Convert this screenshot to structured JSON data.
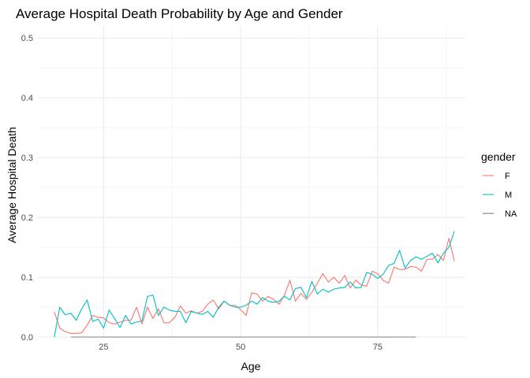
{
  "chart_data": {
    "type": "line",
    "title": "Average Hospital Death Probability by Age and Gender",
    "xlabel": "Age",
    "ylabel": "Average Hospital Death",
    "xlim": [
      13,
      91
    ],
    "ylim": [
      0,
      0.52
    ],
    "x_ticks": [
      25,
      50,
      75
    ],
    "x_tick_labels": [
      "25",
      "50",
      "75"
    ],
    "y_ticks": [
      0.0,
      0.1,
      0.2,
      0.3,
      0.4,
      0.5
    ],
    "y_tick_labels": [
      "0.0",
      "0.1",
      "0.2",
      "0.3",
      "0.4",
      "0.5"
    ],
    "grid": true,
    "legend": {
      "title": "gender",
      "position": "right"
    },
    "series": [
      {
        "name": "F",
        "color": "#F8766D",
        "x": [
          16,
          17,
          18,
          19,
          20,
          21,
          22,
          23,
          24,
          25,
          26,
          27,
          28,
          29,
          30,
          31,
          32,
          33,
          34,
          35,
          36,
          37,
          38,
          39,
          40,
          41,
          42,
          43,
          44,
          45,
          46,
          47,
          48,
          49,
          50,
          51,
          52,
          53,
          54,
          55,
          56,
          57,
          58,
          59,
          60,
          61,
          62,
          63,
          64,
          65,
          66,
          67,
          68,
          69,
          70,
          71,
          72,
          73,
          74,
          75,
          76,
          77,
          78,
          79,
          80,
          81,
          82,
          83,
          84,
          85,
          86,
          87,
          88,
          89
        ],
        "values": [
          0.042,
          0.015,
          0.009,
          0.006,
          0.006,
          0.007,
          0.02,
          0.036,
          0.033,
          0.032,
          0.024,
          0.022,
          0.025,
          0.028,
          0.028,
          0.05,
          0.022,
          0.05,
          0.031,
          0.047,
          0.024,
          0.024,
          0.033,
          0.052,
          0.04,
          0.044,
          0.04,
          0.043,
          0.055,
          0.062,
          0.047,
          0.06,
          0.053,
          0.053,
          0.046,
          0.036,
          0.074,
          0.072,
          0.06,
          0.068,
          0.063,
          0.055,
          0.07,
          0.095,
          0.06,
          0.073,
          0.063,
          0.075,
          0.09,
          0.106,
          0.092,
          0.1,
          0.09,
          0.103,
          0.082,
          0.095,
          0.087,
          0.085,
          0.11,
          0.106,
          0.095,
          0.09,
          0.117,
          0.113,
          0.113,
          0.118,
          0.117,
          0.11,
          0.13,
          0.13,
          0.138,
          0.128,
          0.165,
          0.127
        ]
      },
      {
        "name": "M",
        "color": "#00BFC4",
        "x": [
          16,
          17,
          18,
          19,
          20,
          21,
          22,
          23,
          24,
          25,
          26,
          27,
          28,
          29,
          30,
          31,
          32,
          33,
          34,
          35,
          36,
          37,
          38,
          39,
          40,
          41,
          42,
          43,
          44,
          45,
          46,
          47,
          48,
          49,
          50,
          51,
          52,
          53,
          54,
          55,
          56,
          57,
          58,
          59,
          60,
          61,
          62,
          63,
          64,
          65,
          66,
          67,
          68,
          69,
          70,
          71,
          72,
          73,
          74,
          75,
          76,
          77,
          78,
          79,
          80,
          81,
          82,
          83,
          84,
          85,
          86,
          87,
          88,
          89
        ],
        "values": [
          0.0,
          0.05,
          0.037,
          0.04,
          0.028,
          0.047,
          0.062,
          0.026,
          0.03,
          0.015,
          0.045,
          0.031,
          0.016,
          0.036,
          0.022,
          0.025,
          0.027,
          0.068,
          0.07,
          0.036,
          0.05,
          0.045,
          0.043,
          0.043,
          0.024,
          0.043,
          0.04,
          0.038,
          0.043,
          0.033,
          0.05,
          0.06,
          0.053,
          0.05,
          0.05,
          0.053,
          0.06,
          0.055,
          0.066,
          0.06,
          0.058,
          0.06,
          0.068,
          0.062,
          0.081,
          0.083,
          0.066,
          0.093,
          0.072,
          0.08,
          0.075,
          0.08,
          0.082,
          0.083,
          0.092,
          0.082,
          0.083,
          0.108,
          0.105,
          0.098,
          0.105,
          0.12,
          0.123,
          0.145,
          0.115,
          0.128,
          0.134,
          0.13,
          0.135,
          0.14,
          0.124,
          0.14,
          0.15,
          0.177
        ]
      },
      {
        "name": "NA",
        "color": "#7F7F7F",
        "x": [
          19,
          82
        ],
        "values": [
          0.0,
          0.0
        ]
      }
    ]
  }
}
